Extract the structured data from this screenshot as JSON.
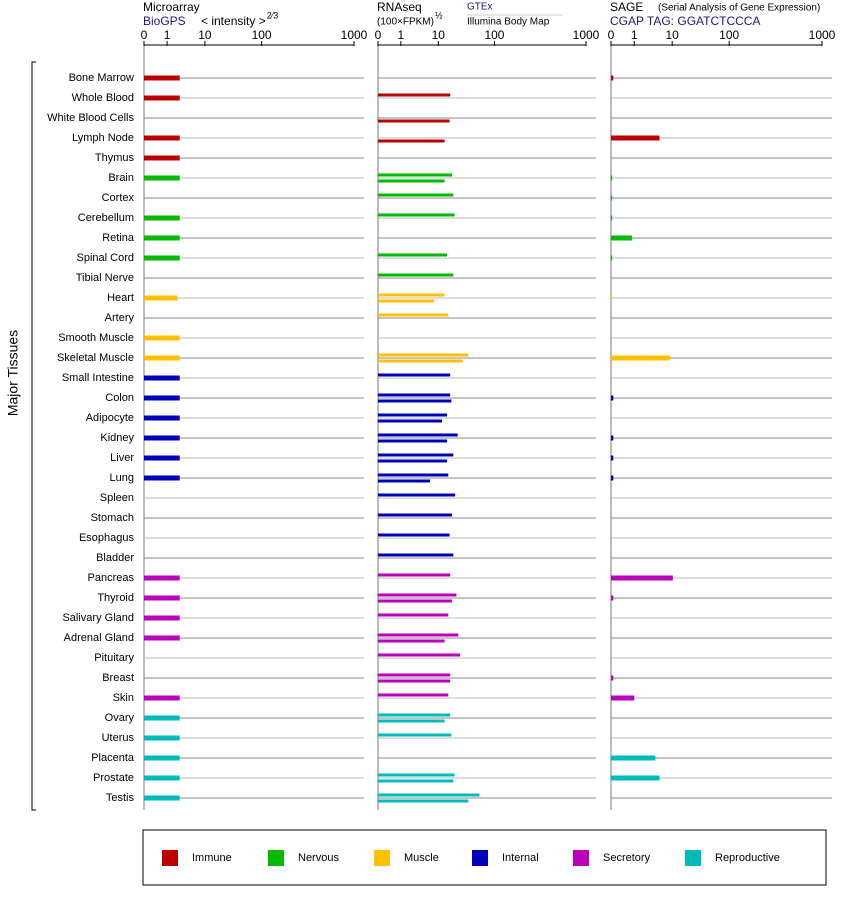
{
  "chart_data": {
    "type": "bar",
    "y_label": "Major Tissues",
    "categories": [
      "Bone Marrow",
      "Whole Blood",
      "White Blood Cells",
      "Lymph Node",
      "Thymus",
      "Brain",
      "Cortex",
      "Cerebellum",
      "Retina",
      "Spinal Cord",
      "Tibial Nerve",
      "Heart",
      "Artery",
      "Smooth Muscle",
      "Skeletal Muscle",
      "Small Intestine",
      "Colon",
      "Adipocyte",
      "Kidney",
      "Liver",
      "Lung",
      "Spleen",
      "Stomach",
      "Esophagus",
      "Bladder",
      "Pancreas",
      "Thyroid",
      "Salivary Gland",
      "Adrenal Gland",
      "Pituitary",
      "Breast",
      "Skin",
      "Ovary",
      "Uterus",
      "Placenta",
      "Prostate",
      "Testis"
    ],
    "category_group": [
      0,
      0,
      0,
      0,
      0,
      1,
      1,
      1,
      1,
      1,
      1,
      2,
      2,
      2,
      2,
      3,
      3,
      3,
      3,
      3,
      3,
      3,
      3,
      3,
      3,
      4,
      4,
      4,
      4,
      4,
      4,
      4,
      5,
      5,
      5,
      5,
      5
    ],
    "groups": [
      {
        "name": "Immune",
        "color": "#bb0000"
      },
      {
        "name": "Nervous",
        "color": "#00bb00"
      },
      {
        "name": "Muscle",
        "color": "#ffc000"
      },
      {
        "name": "Internal",
        "color": "#0000bb"
      },
      {
        "name": "Secretory",
        "color": "#bb00bb"
      },
      {
        "name": "Reproductive",
        "color": "#00bbbb"
      }
    ],
    "panels": [
      {
        "title": "Microarray",
        "source": "BioGPS",
        "unit": "< intensity >",
        "unit_exponent": "2⁄3",
        "xlim": [
          0,
          1000
        ],
        "xticks": [
          0,
          1,
          10,
          100,
          1000
        ],
        "series": [
          {
            "values": [
              4,
              4,
              null,
              4,
              4,
              4,
              null,
              4,
              4,
              4,
              null,
              3.5,
              null,
              4,
              4,
              4,
              4,
              4,
              4,
              4,
              4,
              null,
              null,
              null,
              null,
              4,
              4,
              4,
              4,
              null,
              null,
              4,
              4,
              4,
              4,
              4,
              4
            ]
          }
        ]
      },
      {
        "title": "RNAseq",
        "unit": "(100×FPKM)",
        "unit_exponent": "½",
        "xlim": [
          0,
          1000
        ],
        "xticks": [
          0,
          1,
          10,
          100,
          1000
        ],
        "series": [
          {
            "name": "GTEx",
            "values": [
              null,
              29,
              null,
              null,
              null,
              32,
              34,
              36,
              null,
              24,
              34,
              20,
              26,
              null,
              58,
              29,
              29,
              24,
              41,
              34,
              26,
              37,
              32,
              28,
              34,
              29,
              39,
              26,
              42,
              45,
              29,
              26,
              29,
              31,
              null,
              36,
              76
            ]
          },
          {
            "name": "Illumina Body Map",
            "values": [
              null,
              null,
              28,
              20,
              null,
              20,
              null,
              null,
              null,
              null,
              null,
              9,
              null,
              null,
              49,
              null,
              31,
              16,
              24,
              24,
              8,
              null,
              null,
              null,
              null,
              null,
              32,
              null,
              20,
              null,
              29,
              null,
              20,
              null,
              null,
              34,
              58
            ]
          }
        ]
      },
      {
        "title": "SAGE",
        "subtitle": "(Serial Analysis of Gene Expression)",
        "source": "CGAP TAG: GGATCTCCCA",
        "xlim": [
          0,
          1000
        ],
        "xticks": [
          0,
          1,
          10,
          100,
          1000
        ],
        "series": [
          {
            "values": [
              0.1,
              null,
              null,
              7,
              null,
              0.05,
              0.05,
              0.05,
              0.9,
              0.05,
              null,
              0.05,
              null,
              null,
              9.5,
              null,
              0.1,
              null,
              0.1,
              0.1,
              0.1,
              null,
              null,
              null,
              null,
              11,
              0.1,
              null,
              null,
              null,
              0.1,
              1,
              null,
              null,
              6,
              7,
              null
            ]
          }
        ]
      }
    ]
  }
}
